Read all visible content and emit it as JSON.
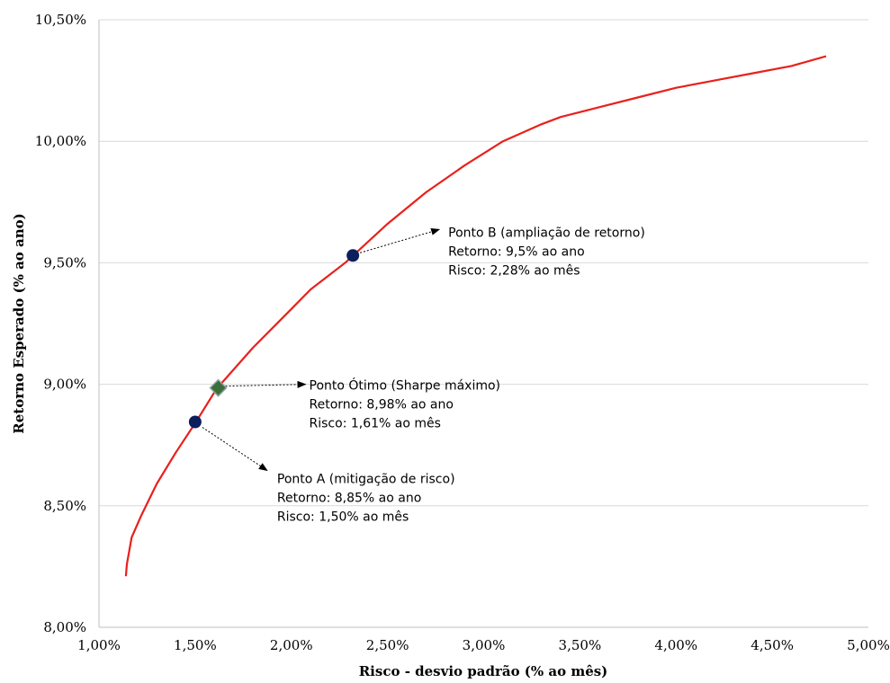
{
  "chart_data": {
    "type": "line",
    "title": "",
    "xlabel": "Risco - desvio padrão (% ao mês)",
    "ylabel": "Retorno Esperado (% ao ano)",
    "xlim": [
      1.0,
      5.0
    ],
    "ylim": [
      8.0,
      10.5
    ],
    "x_ticks": [
      1.0,
      1.5,
      2.0,
      2.5,
      3.0,
      3.5,
      4.0,
      4.5,
      5.0
    ],
    "x_tick_labels": [
      "1,00%",
      "1,50%",
      "2,00%",
      "2,50%",
      "3,00%",
      "3,50%",
      "4,00%",
      "4,50%",
      "5,00%"
    ],
    "y_ticks": [
      8.0,
      8.5,
      9.0,
      9.5,
      10.0,
      10.5
    ],
    "y_tick_labels": [
      "8,00%",
      "8,50%",
      "9,00%",
      "9,50%",
      "10,00%",
      "10,50%"
    ],
    "grid": "horizontal",
    "line_color": "#e8211c",
    "series": [
      {
        "x": [
          1.14,
          1.145,
          1.17,
          1.22,
          1.3,
          1.4,
          1.5,
          1.61,
          1.8,
          2.0,
          2.1,
          2.28,
          2.5,
          2.7,
          2.9,
          3.1,
          3.3,
          3.4,
          3.6,
          3.8,
          4.0,
          4.2,
          4.4,
          4.6,
          4.78
        ],
        "y": [
          8.21,
          8.26,
          8.37,
          8.46,
          8.59,
          8.72,
          8.84,
          8.98,
          9.15,
          9.31,
          9.39,
          9.5,
          9.66,
          9.79,
          9.9,
          10.0,
          10.07,
          10.1,
          10.14,
          10.18,
          10.22,
          10.25,
          10.28,
          10.31,
          10.35
        ]
      }
    ],
    "points": [
      {
        "id": "point-b",
        "x": 2.32,
        "y": 9.53,
        "marker": "circle",
        "color": "#0b1f5c",
        "label_lines": [
          "Ponto B (ampliação de retorno)",
          "Retorno: 9,5% ao ano",
          "Risco: 2,28% ao mês"
        ]
      },
      {
        "id": "point-optimal",
        "x": 1.62,
        "y": 8.985,
        "marker": "diamond",
        "color": "#3b6e3a",
        "label_lines": [
          "Ponto Ótimo (Sharpe máximo)",
          "Retorno: 8,98% ao ano",
          "Risco: 1,61% ao mês"
        ]
      },
      {
        "id": "point-a",
        "x": 1.5,
        "y": 8.845,
        "marker": "circle",
        "color": "#0b1f5c",
        "label_lines": [
          "Ponto A (mitigação de risco)",
          "Retorno: 8,85% ao ano",
          "Risco: 1,50% ao mês"
        ]
      }
    ]
  }
}
